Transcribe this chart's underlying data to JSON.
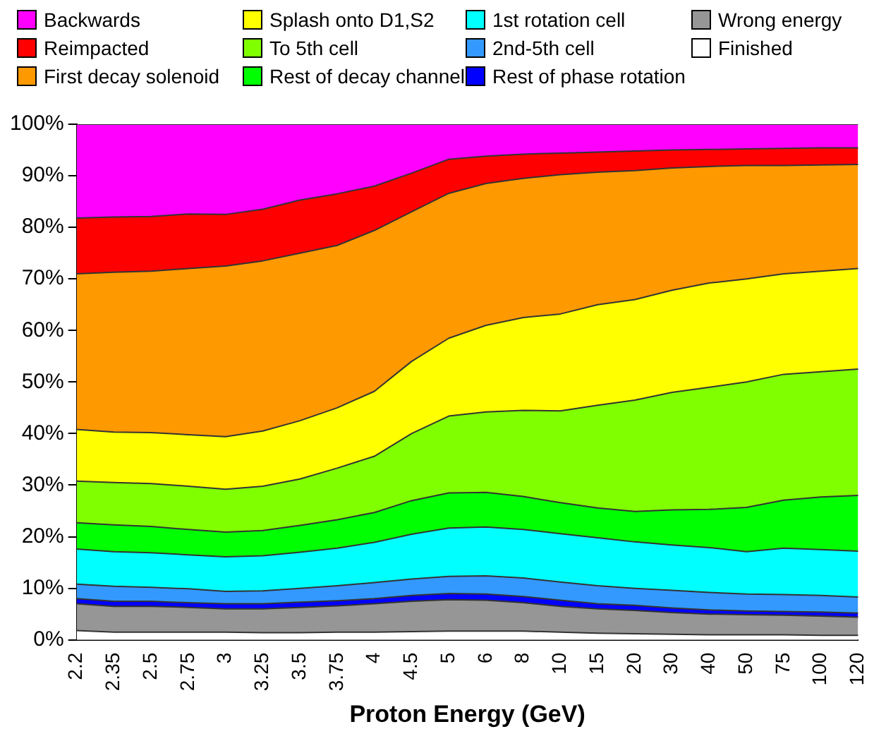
{
  "chart_data": {
    "type": "area",
    "stacked": true,
    "xlabel": "Proton Energy (GeV)",
    "categories": [
      "2.2",
      "2.35",
      "2.5",
      "2.75",
      "3",
      "3.25",
      "3.5",
      "3.75",
      "4",
      "4.5",
      "5",
      "6",
      "8",
      "10",
      "15",
      "20",
      "30",
      "40",
      "50",
      "75",
      "100",
      "120"
    ],
    "ylim": [
      0,
      100
    ],
    "yticks": [
      {
        "value": 0,
        "label": "0%"
      },
      {
        "value": 10,
        "label": "10%"
      },
      {
        "value": 20,
        "label": "20%"
      },
      {
        "value": 30,
        "label": "30%"
      },
      {
        "value": 40,
        "label": "40%"
      },
      {
        "value": 50,
        "label": "50%"
      },
      {
        "value": 60,
        "label": "60%"
      },
      {
        "value": 70,
        "label": "70%"
      },
      {
        "value": 80,
        "label": "80%"
      },
      {
        "value": 90,
        "label": "90%"
      },
      {
        "value": 100,
        "label": "100%"
      }
    ],
    "grid": false,
    "legend": "top",
    "series": [
      {
        "name": "Finished",
        "color": "#ffffff",
        "values": [
          1.8,
          1.5,
          1.5,
          1.5,
          1.5,
          1.4,
          1.4,
          1.5,
          1.5,
          1.6,
          1.7,
          1.7,
          1.7,
          1.5,
          1.3,
          1.2,
          1.1,
          1.0,
          1.0,
          1.0,
          0.9,
          0.9
        ]
      },
      {
        "name": "Wrong energy",
        "color": "#969696",
        "values": [
          5.2,
          5.0,
          5.0,
          4.8,
          4.5,
          4.6,
          4.9,
          5.1,
          5.5,
          5.9,
          6.1,
          6.0,
          5.5,
          5.0,
          4.7,
          4.5,
          4.2,
          4.0,
          3.9,
          3.8,
          3.7,
          3.5
        ]
      },
      {
        "name": "Rest of phase rotation",
        "color": "#0000ff",
        "values": [
          1.0,
          1.0,
          1.0,
          0.9,
          1.0,
          1.0,
          1.0,
          1.0,
          1.0,
          1.1,
          1.2,
          1.2,
          1.2,
          1.2,
          1.0,
          1.0,
          0.9,
          0.8,
          0.7,
          0.7,
          0.8,
          0.8
        ]
      },
      {
        "name": "2nd-5th cell",
        "color": "#3399ff",
        "values": [
          2.8,
          2.9,
          2.7,
          2.7,
          2.4,
          2.5,
          2.7,
          2.9,
          3.1,
          3.2,
          3.3,
          3.5,
          3.6,
          3.5,
          3.5,
          3.3,
          3.4,
          3.4,
          3.3,
          3.3,
          3.2,
          3.1
        ]
      },
      {
        "name": "1st rotation cell",
        "color": "#00ffff",
        "values": [
          6.8,
          6.7,
          6.7,
          6.6,
          6.7,
          6.8,
          7.0,
          7.3,
          7.8,
          8.7,
          9.4,
          9.5,
          9.4,
          9.4,
          9.3,
          9.0,
          8.8,
          8.7,
          8.2,
          9.0,
          8.9,
          8.9
        ]
      },
      {
        "name": "Rest of decay channel",
        "color": "#00ff00",
        "values": [
          5.1,
          5.2,
          5.1,
          4.9,
          4.8,
          4.9,
          5.2,
          5.5,
          5.8,
          6.5,
          6.8,
          6.7,
          6.4,
          6.0,
          5.8,
          5.9,
          6.8,
          7.4,
          8.6,
          9.3,
          10.2,
          10.8
        ]
      },
      {
        "name": "To 5th cell",
        "color": "#80ff00",
        "values": [
          8.1,
          8.2,
          8.3,
          8.4,
          8.3,
          8.6,
          9.0,
          10.0,
          10.9,
          13.0,
          14.9,
          15.6,
          16.7,
          17.8,
          19.9,
          21.6,
          22.8,
          23.7,
          24.3,
          24.4,
          24.3,
          24.5
        ]
      },
      {
        "name": "Splash onto D1,S2",
        "color": "#ffff00",
        "values": [
          10.0,
          9.8,
          9.9,
          10.0,
          10.2,
          10.7,
          11.3,
          11.7,
          12.6,
          14.0,
          15.1,
          16.8,
          18.0,
          18.8,
          19.5,
          19.5,
          19.8,
          20.2,
          20.0,
          19.5,
          19.5,
          19.5
        ]
      },
      {
        "name": "First decay solenoid",
        "color": "#ff9900",
        "values": [
          30.2,
          31.0,
          31.3,
          32.2,
          33.1,
          33.0,
          32.5,
          31.5,
          31.2,
          29.0,
          28.1,
          27.5,
          27.0,
          27.0,
          25.7,
          25.0,
          23.7,
          22.6,
          22.0,
          21.0,
          20.6,
          20.2
        ]
      },
      {
        "name": "Reimpacted",
        "color": "#ff0000",
        "values": [
          10.8,
          10.7,
          10.6,
          10.6,
          10.0,
          10.0,
          10.3,
          10.0,
          8.6,
          7.5,
          6.6,
          5.3,
          4.7,
          4.2,
          3.9,
          3.8,
          3.5,
          3.3,
          3.2,
          3.3,
          3.3,
          3.2
        ]
      },
      {
        "name": "Backwards",
        "color": "#ff00ff",
        "values": [
          18.2,
          18.0,
          17.9,
          17.4,
          17.5,
          16.5,
          14.7,
          13.5,
          12.0,
          9.5,
          6.8,
          6.2,
          5.8,
          5.6,
          5.4,
          5.2,
          5.0,
          4.9,
          4.8,
          4.7,
          4.6,
          4.6
        ]
      }
    ]
  }
}
